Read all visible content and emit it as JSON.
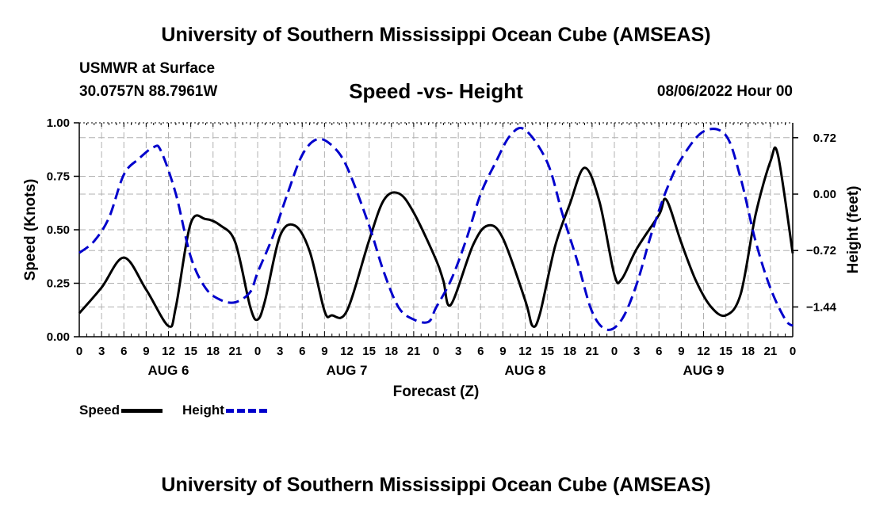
{
  "header": {
    "title": "University of Southern Mississippi Ocean Cube (AMSEAS)",
    "station": "USMWR at Surface",
    "coords": "30.0757N  88.7961W",
    "subtitle": "Speed -vs- Height",
    "datetime": "08/06/2022 Hour 00"
  },
  "footer": {
    "title": "University of Southern Mississippi Ocean Cube (AMSEAS)"
  },
  "legend": {
    "speed": "Speed",
    "height": "Height"
  },
  "colors": {
    "speed": "#000000",
    "height": "#0000cc",
    "grid": "#b0b0b0"
  },
  "chart_data": {
    "type": "line",
    "title": "Speed -vs- Height",
    "xlabel": "Forecast (Z)",
    "ylabel": "Speed (Knots)",
    "y2label": "Height (feet)",
    "x_range": [
      0,
      96
    ],
    "ylim": [
      0,
      1
    ],
    "y2lim": [
      -1.82,
      0.91
    ],
    "y_ticks": [
      0,
      0.25,
      0.5,
      0.75,
      1.0
    ],
    "y_tick_labels": [
      "0.00",
      "0.25",
      "0.50",
      "0.75",
      "1.00"
    ],
    "y2_ticks": [
      0.72,
      0.0,
      -0.72,
      -1.44
    ],
    "y2_tick_labels": [
      "0.72",
      "0.00",
      "−0.72",
      "−1.44"
    ],
    "x_ticks": [
      0,
      3,
      6,
      9,
      12,
      15,
      18,
      21,
      24,
      27,
      30,
      33,
      36,
      39,
      42,
      45,
      48,
      51,
      54,
      57,
      60,
      63,
      66,
      69,
      72,
      75,
      78,
      81,
      84,
      87,
      90,
      93,
      96
    ],
    "x_tick_labels": [
      "0",
      "3",
      "6",
      "9",
      "12",
      "15",
      "18",
      "21",
      "0",
      "3",
      "6",
      "9",
      "12",
      "15",
      "18",
      "21",
      "0",
      "3",
      "6",
      "9",
      "12",
      "15",
      "18",
      "21",
      "0",
      "3",
      "6",
      "9",
      "12",
      "15",
      "18",
      "21",
      "0"
    ],
    "day_labels": [
      {
        "label": "AUG 6",
        "x": 12
      },
      {
        "label": "AUG 7",
        "x": 36
      },
      {
        "label": "AUG 8",
        "x": 60
      },
      {
        "label": "AUG 9",
        "x": 84
      }
    ],
    "grid": true,
    "series": [
      {
        "name": "Speed",
        "axis": "left",
        "x": [
          0,
          3,
          6,
          9,
          12,
          13,
          15,
          17,
          19,
          21,
          23,
          24,
          25,
          27,
          29,
          31,
          33,
          34,
          36,
          39,
          41,
          43,
          45,
          48,
          49,
          50,
          53,
          55,
          57,
          60,
          61,
          62,
          64,
          66,
          68,
          70,
          72,
          73,
          75,
          78,
          79,
          81,
          83,
          85,
          87,
          89,
          91,
          93,
          94,
          96
        ],
        "values": [
          0.11,
          0.23,
          0.37,
          0.22,
          0.05,
          0.14,
          0.53,
          0.55,
          0.52,
          0.44,
          0.14,
          0.08,
          0.17,
          0.47,
          0.52,
          0.4,
          0.12,
          0.1,
          0.12,
          0.45,
          0.64,
          0.67,
          0.58,
          0.36,
          0.26,
          0.15,
          0.43,
          0.52,
          0.46,
          0.17,
          0.05,
          0.11,
          0.42,
          0.62,
          0.79,
          0.63,
          0.29,
          0.27,
          0.41,
          0.57,
          0.64,
          0.44,
          0.26,
          0.14,
          0.1,
          0.2,
          0.57,
          0.82,
          0.85,
          0.39
        ]
      },
      {
        "name": "Height",
        "axis": "right",
        "x": [
          0,
          2,
          4,
          6,
          8,
          10,
          11,
          13,
          15,
          17,
          19,
          21,
          23,
          24,
          26,
          28,
          30,
          32,
          34,
          36,
          39,
          41,
          43,
          45,
          47,
          48,
          50,
          52,
          54,
          56,
          58,
          60,
          63,
          65,
          67,
          69,
          71,
          73,
          75,
          77,
          79,
          81,
          84,
          87,
          89,
          91,
          93,
          95,
          96
        ],
        "values": [
          -0.75,
          -0.6,
          -0.3,
          0.25,
          0.45,
          0.6,
          0.55,
          0.0,
          -0.8,
          -1.2,
          -1.35,
          -1.38,
          -1.25,
          -1.0,
          -0.55,
          0.0,
          0.5,
          0.7,
          0.62,
          0.35,
          -0.4,
          -1.0,
          -1.45,
          -1.6,
          -1.63,
          -1.45,
          -1.1,
          -0.6,
          0.0,
          0.4,
          0.75,
          0.82,
          0.4,
          -0.25,
          -0.85,
          -1.5,
          -1.73,
          -1.6,
          -1.15,
          -0.5,
          0.05,
          0.45,
          0.8,
          0.75,
          0.2,
          -0.6,
          -1.2,
          -1.6,
          -1.68
        ]
      }
    ]
  }
}
